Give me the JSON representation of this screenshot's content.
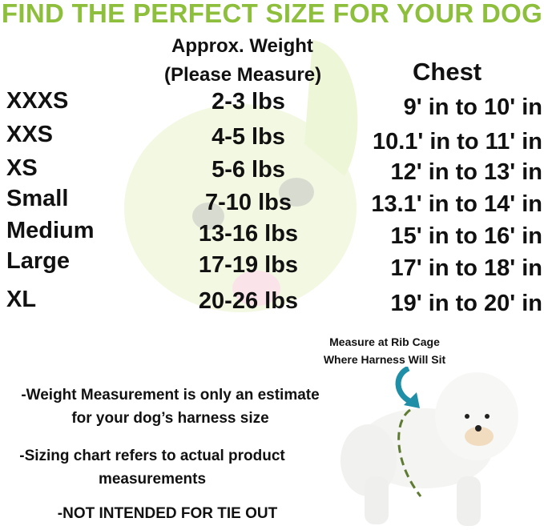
{
  "title": "FIND THE PERFECT SIZE FOR YOUR DOG",
  "headers": {
    "weight_line1": "Approx. Weight",
    "weight_line2": "(Please Measure)",
    "chest": "Chest"
  },
  "rows": [
    {
      "size": "XXXS",
      "weight": "2-3 lbs",
      "chest": "9' in to 10' in"
    },
    {
      "size": "XXS",
      "weight": "4-5 lbs",
      "chest": "10.1' in to 11' in"
    },
    {
      "size": "XS",
      "weight": "5-6 lbs",
      "chest": "12' in to 13' in"
    },
    {
      "size": "Small",
      "weight": "7-10 lbs",
      "chest": "13.1' in to 14' in"
    },
    {
      "size": "Medium",
      "weight": "13-16 lbs",
      "chest": "15' in to 16' in"
    },
    {
      "size": "Large",
      "weight": "17-19 lbs",
      "chest": "17' in to 18' in"
    },
    {
      "size": "XL",
      "weight": "20-26 lbs",
      "chest": "19' in to 20' in"
    }
  ],
  "caption": {
    "line1": "Measure at Rib Cage",
    "line2": "Where Harness Will Sit"
  },
  "notes": [
    {
      "line1": "-Weight Measurement is only an estimate",
      "line2": "for your dog’s harness size"
    },
    {
      "line1": "-Sizing chart refers to actual product",
      "line2": "measurements"
    },
    {
      "line1": "-NOT INTENDED FOR TIE OUT"
    }
  ],
  "colors": {
    "title": "#8dbf3c",
    "arrow": "#1f8fa8",
    "dash": "#5e7a33",
    "watermark": "#f1f7dc"
  }
}
